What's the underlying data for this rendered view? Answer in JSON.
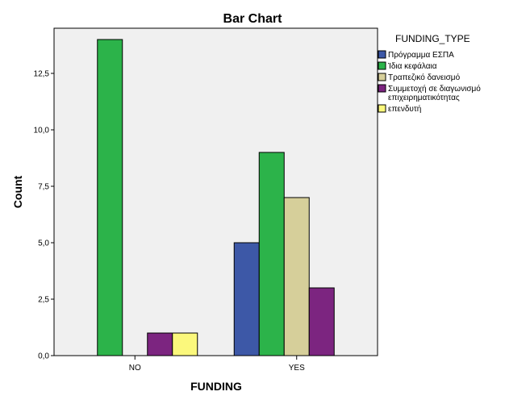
{
  "chart_data": {
    "type": "bar",
    "title": "Bar Chart",
    "xlabel": "FUNDING",
    "ylabel": "Count",
    "categories": [
      "NO",
      "YES"
    ],
    "ylim": [
      0,
      14.5
    ],
    "yticks": [
      "0,0",
      "2,5",
      "5,0",
      "7,5",
      "10,0",
      "12,5"
    ],
    "ytick_values": [
      0,
      2.5,
      5,
      7.5,
      10,
      12.5
    ],
    "legend_title": "FUNDING_TYPE",
    "legend_position": "right",
    "grid": false,
    "series": [
      {
        "name": "Πρόγραμμα ΕΣΠΑ",
        "color": "#3d58a7",
        "values": [
          0,
          5
        ]
      },
      {
        "name": "Ίδια κεφάλαια",
        "color": "#2cb34a",
        "values": [
          14,
          9
        ]
      },
      {
        "name": "Τραπεζικό δανεισμό",
        "color": "#d6cf9a",
        "values": [
          0,
          7
        ]
      },
      {
        "name": "Συμμετοχή σε διαγωνισμό επιχειρηματικότητας",
        "name_lines": [
          "Συμμετοχή σε διαγωνισμό",
          "επιχειρηματικότητας"
        ],
        "color": "#7c2580",
        "values": [
          1,
          3
        ]
      },
      {
        "name": "επενδυτή",
        "color": "#fbf87c",
        "values": [
          1,
          0
        ]
      }
    ]
  }
}
